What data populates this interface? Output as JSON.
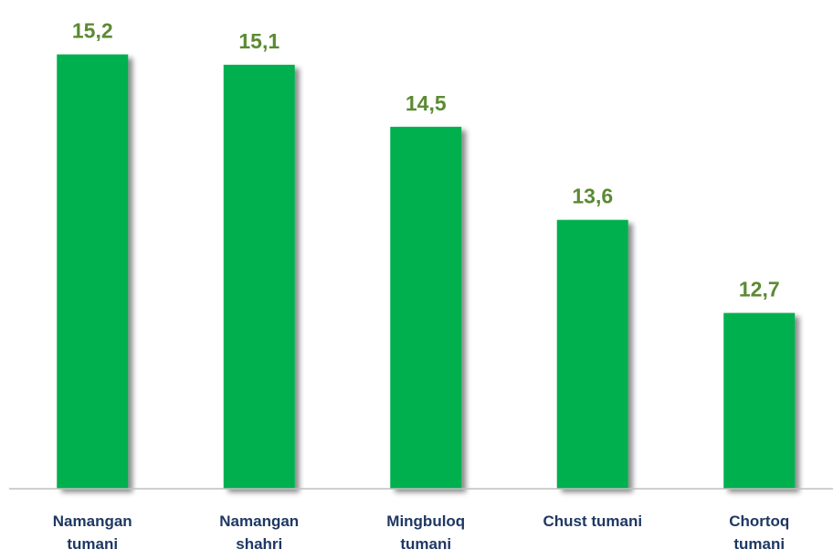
{
  "chart_data": {
    "type": "bar",
    "categories": [
      "Namangan tumani",
      "Namangan shahri",
      "Mingbuloq tumani",
      "Chust  tumani",
      "Chortoq tumani"
    ],
    "values": [
      15.2,
      15.1,
      14.5,
      13.6,
      12.7
    ],
    "value_labels": [
      "15,2",
      "15,1",
      "14,5",
      "13,6",
      "12,7"
    ],
    "color": "#00b050",
    "ylim": [
      11,
      15.5
    ]
  }
}
